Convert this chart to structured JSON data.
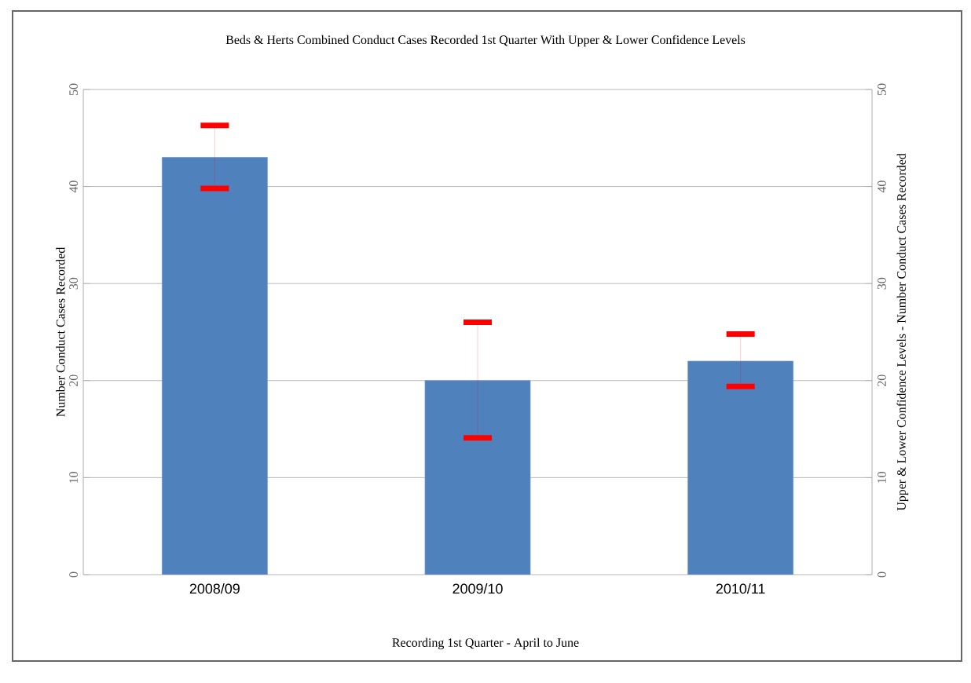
{
  "chart_data": {
    "type": "bar",
    "title": "Beds & Herts Combined Conduct Cases Recorded 1st Quarter With Upper & Lower Confidence Levels",
    "xlabel": "Recording 1st Quarter - April to June",
    "ylabel": "Number Conduct Cases Recorded",
    "y2label": "Upper & Lower Confidence Levels - Number Conduct Cases Recorded",
    "categories": [
      "2008/09",
      "2009/10",
      "2010/11"
    ],
    "values": [
      43,
      20,
      22
    ],
    "errors": [
      [
        39.8,
        46.3
      ],
      [
        14.1,
        26
      ],
      [
        19.4,
        24.8
      ]
    ],
    "color": "#4f81bd",
    "ylim": [
      0,
      50
    ],
    "yticks": [
      0,
      10,
      20,
      30,
      40,
      50
    ],
    "y2lim": [
      0,
      50
    ],
    "y2ticks": [
      0,
      10,
      20,
      30,
      40,
      50
    ],
    "grid": "y"
  }
}
